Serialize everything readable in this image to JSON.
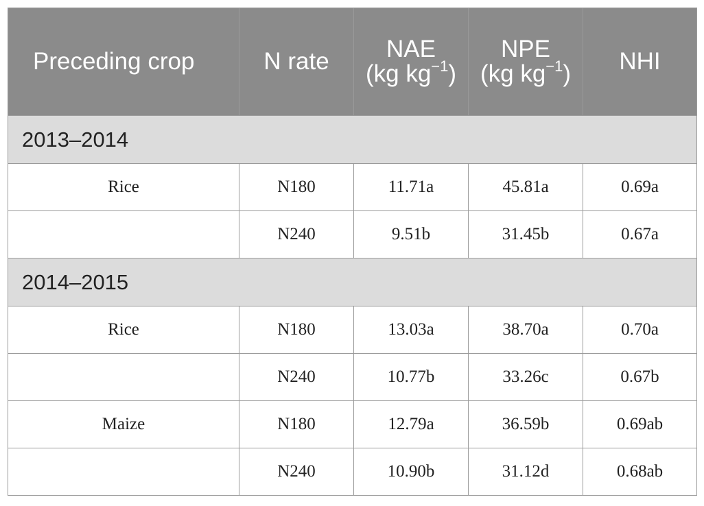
{
  "header": {
    "preceding_crop": "Preceding crop",
    "n_rate": "N rate",
    "nae": {
      "name": "NAE",
      "unit_pre": "(kg kg",
      "unit_sup": "−1",
      "unit_post": ")"
    },
    "npe": {
      "name": "NPE",
      "unit_pre": "(kg kg",
      "unit_sup": "−1",
      "unit_post": ")"
    },
    "nhi": "NHI"
  },
  "sections": [
    {
      "label": "2013–2014",
      "rows": [
        {
          "crop": "Rice",
          "n_rate": "N180",
          "nae": "11.71a",
          "npe": "45.81a",
          "nhi": "0.69a"
        },
        {
          "crop": "",
          "n_rate": "N240",
          "nae": "9.51b",
          "npe": "31.45b",
          "nhi": "0.67a"
        }
      ]
    },
    {
      "label": "2014–2015",
      "rows": [
        {
          "crop": "Rice",
          "n_rate": "N180",
          "nae": "13.03a",
          "npe": "38.70a",
          "nhi": "0.70a"
        },
        {
          "crop": "",
          "n_rate": "N240",
          "nae": "10.77b",
          "npe": "33.26c",
          "nhi": "0.67b"
        },
        {
          "crop": "Maize",
          "n_rate": "N180",
          "nae": "12.79a",
          "npe": "36.59b",
          "nhi": "0.69ab"
        },
        {
          "crop": "",
          "n_rate": "N240",
          "nae": "10.90b",
          "npe": "31.12d",
          "nhi": "0.68ab"
        }
      ]
    }
  ]
}
